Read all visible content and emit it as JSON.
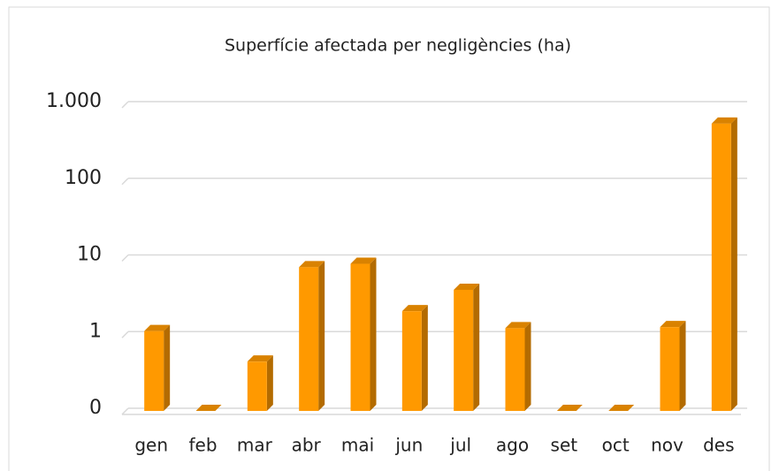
{
  "chart_data": {
    "type": "bar",
    "title": "Superfície afectada per negligències (ha)",
    "categories": [
      "gen",
      "feb",
      "mar",
      "abr",
      "mai",
      "jun",
      "jul",
      "ago",
      "set",
      "oct",
      "nov",
      "des"
    ],
    "values": [
      1.1,
      0.1,
      0.44,
      7.5,
      8.3,
      2.0,
      3.8,
      1.2,
      0.1,
      0.1,
      1.24,
      560
    ],
    "color": "#ff9900",
    "log_scale": true,
    "ylim": [
      0.1,
      1000
    ],
    "yticks": [
      {
        "value": 0.1,
        "label": "0"
      },
      1,
      10,
      100,
      {
        "value": 1000,
        "label": "1.000"
      }
    ],
    "grid": true
  }
}
